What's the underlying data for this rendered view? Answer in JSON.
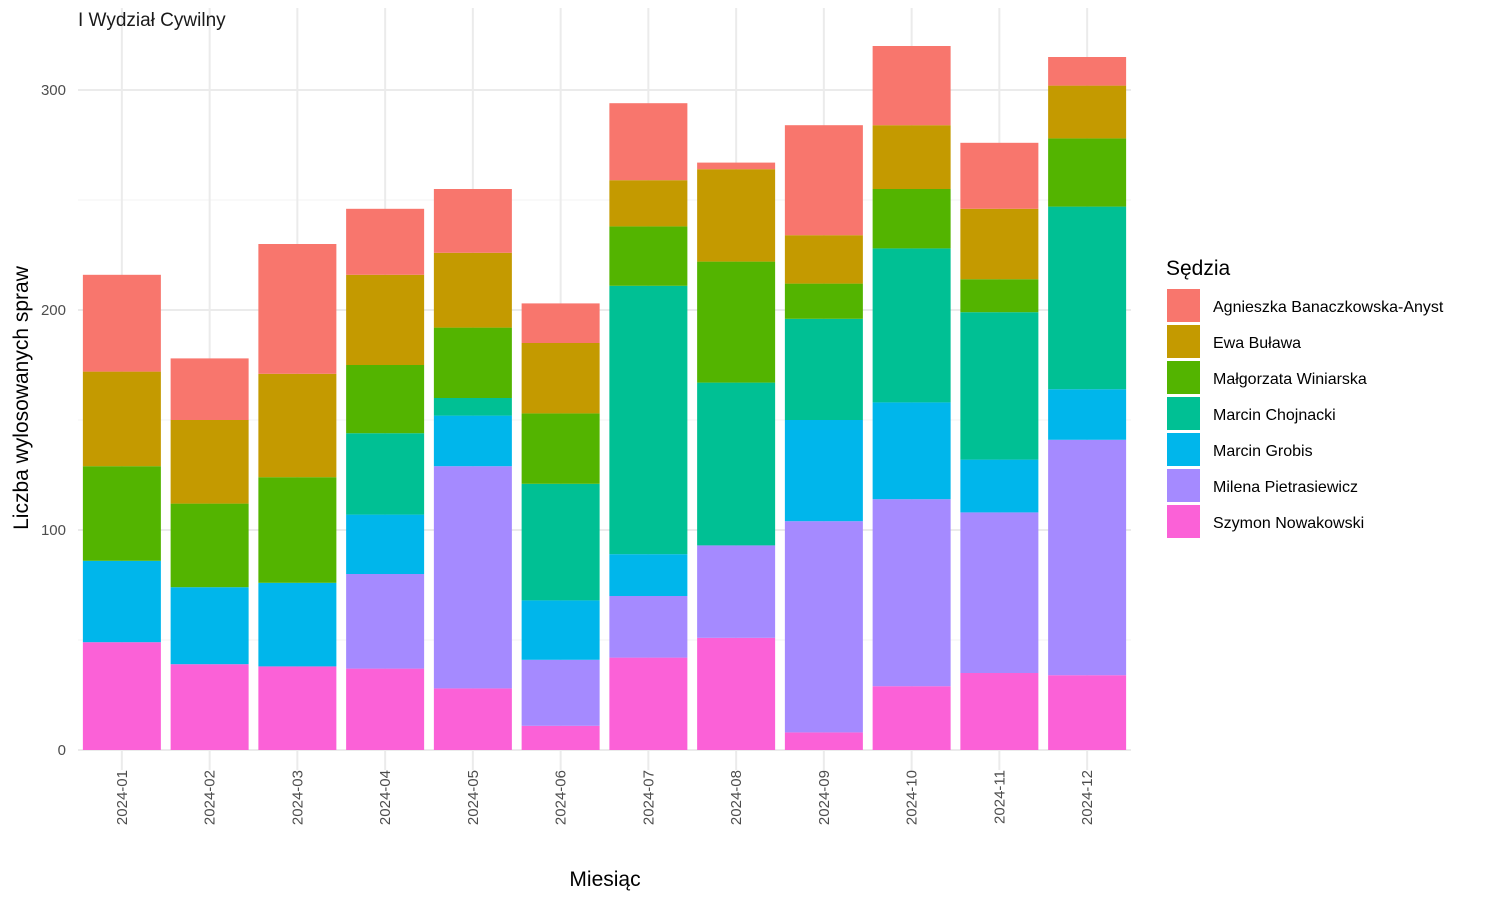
{
  "chart_data": {
    "type": "bar",
    "stacked": true,
    "title": "I Wydział Cywilny",
    "xlabel": "Miesiąc",
    "ylabel": "Liczba wylosowanych spraw",
    "ylim": [
      0,
      325
    ],
    "yticks": [
      0,
      100,
      200,
      300
    ],
    "grid": true,
    "legend_title": "Sędzia",
    "legend_position": "right",
    "categories": [
      "2024-01",
      "2024-02",
      "2024-03",
      "2024-04",
      "2024-05",
      "2024-06",
      "2024-07",
      "2024-08",
      "2024-09",
      "2024-10",
      "2024-11",
      "2024-12"
    ],
    "series": [
      {
        "name": "Agnieszka Banaczkowska-Anyst",
        "color": "#F8766D",
        "values": [
          44,
          28,
          59,
          30,
          29,
          18,
          35,
          3,
          50,
          36,
          30,
          13
        ]
      },
      {
        "name": "Ewa Buława",
        "color": "#C49A00",
        "values": [
          43,
          38,
          47,
          41,
          34,
          32,
          21,
          42,
          22,
          29,
          32,
          24
        ]
      },
      {
        "name": "Małgorzata Winiarska",
        "color": "#53B400",
        "values": [
          43,
          38,
          48,
          31,
          32,
          32,
          27,
          55,
          16,
          27,
          15,
          31
        ]
      },
      {
        "name": "Marcin Chojnacki",
        "color": "#00C094",
        "values": [
          0,
          0,
          0,
          37,
          8,
          53,
          122,
          74,
          46,
          70,
          67,
          83
        ]
      },
      {
        "name": "Marcin Grobis",
        "color": "#00B6EB",
        "values": [
          37,
          35,
          38,
          27,
          23,
          27,
          19,
          0,
          46,
          44,
          24,
          23
        ]
      },
      {
        "name": "Milena Pietrasiewicz",
        "color": "#A58AFF",
        "values": [
          0,
          0,
          0,
          43,
          101,
          30,
          28,
          42,
          96,
          85,
          73,
          107
        ]
      },
      {
        "name": "Szymon Nowakowski",
        "color": "#FB61D7",
        "values": [
          49,
          39,
          38,
          37,
          28,
          11,
          42,
          51,
          8,
          29,
          35,
          34
        ]
      }
    ]
  }
}
